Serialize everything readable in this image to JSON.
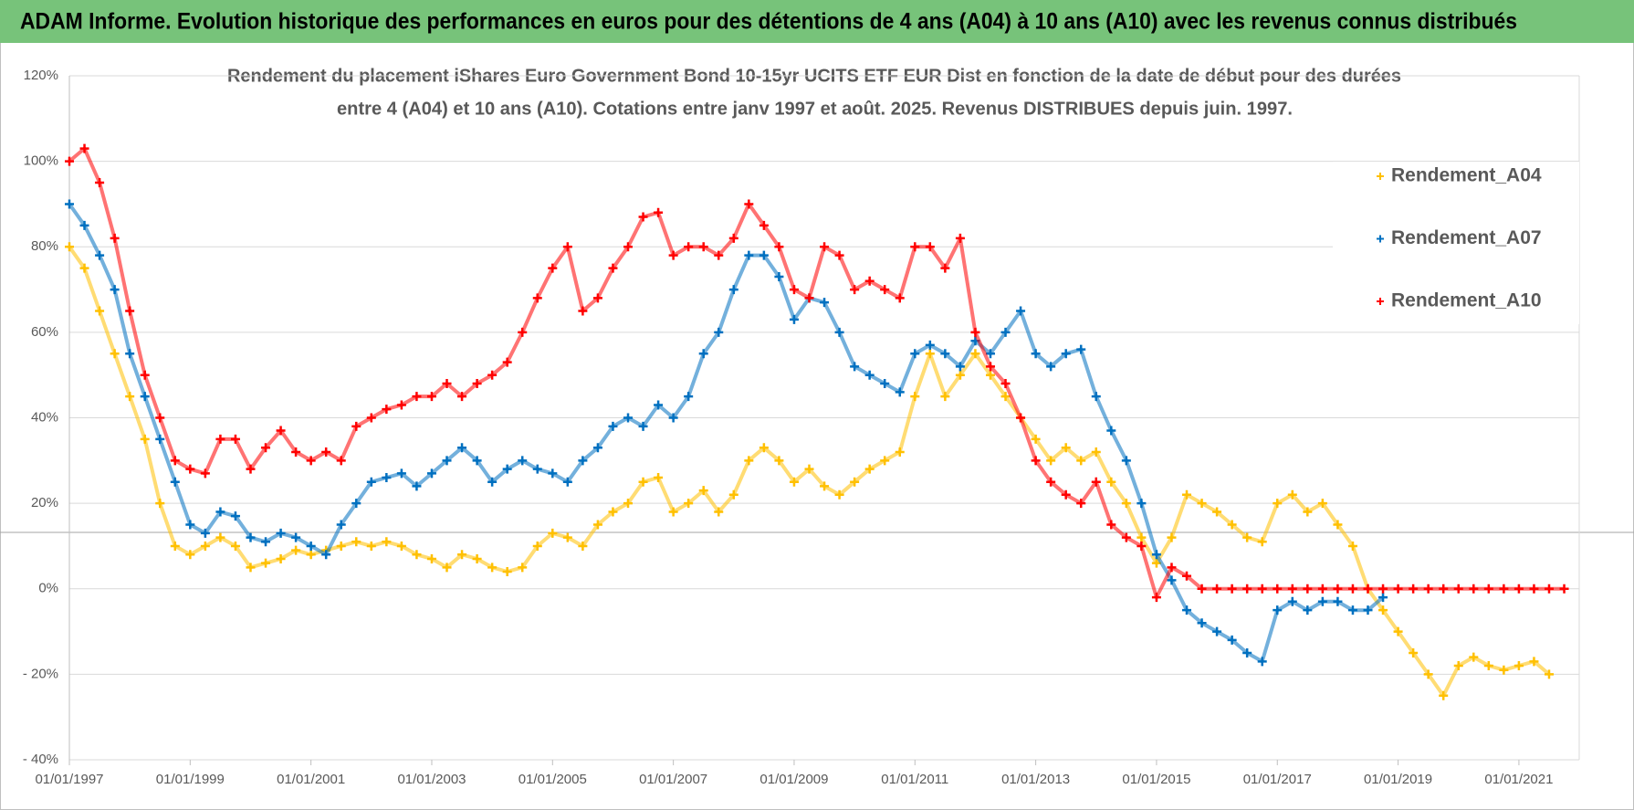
{
  "chart_data": {
    "type": "scatter",
    "title": "ADAM Informe. Evolution historique des performances en euros pour des détentions de 4 ans (A04) à 10 ans (A10) avec les revenus connus distribués",
    "subtitle": [
      "Rendement du placement iShares Euro Government Bond 10-15yr UCITS ETF EUR Dist en fonction de la date de début pour des durées",
      "entre 4 (A04) et 10 ans (A10). Cotations entre janv 1997 et août. 2025. Revenus DISTRIBUES depuis juin. 1997."
    ],
    "x": [
      "1997-01-01",
      "1997-04-01",
      "1997-07-01",
      "1997-10-01",
      "1998-01-01",
      "1998-04-01",
      "1998-07-01",
      "1998-10-01",
      "1999-01-01",
      "1999-04-01",
      "1999-07-01",
      "1999-10-01",
      "2000-01-01",
      "2000-04-01",
      "2000-07-01",
      "2000-10-01",
      "2001-01-01",
      "2001-04-01",
      "2001-07-01",
      "2001-10-01",
      "2002-01-01",
      "2002-04-01",
      "2002-07-01",
      "2002-10-01",
      "2003-01-01",
      "2003-04-01",
      "2003-07-01",
      "2003-10-01",
      "2004-01-01",
      "2004-04-01",
      "2004-07-01",
      "2004-10-01",
      "2005-01-01",
      "2005-04-01",
      "2005-07-01",
      "2005-10-01",
      "2006-01-01",
      "2006-04-01",
      "2006-07-01",
      "2006-10-01",
      "2007-01-01",
      "2007-04-01",
      "2007-07-01",
      "2007-10-01",
      "2008-01-01",
      "2008-04-01",
      "2008-07-01",
      "2008-10-01",
      "2009-01-01",
      "2009-04-01",
      "2009-07-01",
      "2009-10-01",
      "2010-01-01",
      "2010-04-01",
      "2010-07-01",
      "2010-10-01",
      "2011-01-01",
      "2011-04-01",
      "2011-07-01",
      "2011-10-01",
      "2012-01-01",
      "2012-04-01",
      "2012-07-01",
      "2012-10-01",
      "2013-01-01",
      "2013-04-01",
      "2013-07-01",
      "2013-10-01",
      "2014-01-01",
      "2014-04-01",
      "2014-07-01",
      "2014-10-01",
      "2015-01-01",
      "2015-04-01",
      "2015-07-01",
      "2015-10-01",
      "2016-01-01",
      "2016-04-01",
      "2016-07-01",
      "2016-10-01",
      "2017-01-01",
      "2017-04-01",
      "2017-07-01",
      "2017-10-01",
      "2018-01-01",
      "2018-04-01",
      "2018-07-01",
      "2018-10-01",
      "2019-01-01",
      "2019-04-01",
      "2019-07-01",
      "2019-10-01",
      "2020-01-01",
      "2020-04-01",
      "2020-07-01",
      "2020-10-01",
      "2021-01-01",
      "2021-04-01",
      "2021-07-01",
      "2021-10-01"
    ],
    "series": [
      {
        "name": "Rendement_A04",
        "color": "#ffc000",
        "values": [
          80,
          75,
          65,
          55,
          45,
          35,
          20,
          10,
          8,
          10,
          12,
          10,
          5,
          6,
          7,
          9,
          8,
          9,
          10,
          11,
          10,
          11,
          10,
          8,
          7,
          5,
          8,
          7,
          5,
          4,
          5,
          10,
          13,
          12,
          10,
          15,
          18,
          20,
          25,
          26,
          18,
          20,
          23,
          18,
          22,
          30,
          33,
          30,
          25,
          28,
          24,
          22,
          25,
          28,
          30,
          32,
          45,
          55,
          45,
          50,
          55,
          50,
          45,
          40,
          35,
          30,
          33,
          30,
          32,
          25,
          20,
          12,
          6,
          12,
          22,
          20,
          18,
          15,
          12,
          11,
          20,
          22,
          18,
          20,
          15,
          10,
          0,
          -5,
          -10,
          -15,
          -20,
          -25,
          -18,
          -16,
          -18,
          -19,
          -18,
          -17,
          -20,
          null
        ]
      },
      {
        "name": "Rendement_A07",
        "color": "#0070c0",
        "values": [
          90,
          85,
          78,
          70,
          55,
          45,
          35,
          25,
          15,
          13,
          18,
          17,
          12,
          11,
          13,
          12,
          10,
          8,
          15,
          20,
          25,
          26,
          27,
          24,
          27,
          30,
          33,
          30,
          25,
          28,
          30,
          28,
          27,
          25,
          30,
          33,
          38,
          40,
          38,
          43,
          40,
          45,
          55,
          60,
          70,
          78,
          78,
          73,
          63,
          68,
          67,
          60,
          52,
          50,
          48,
          46,
          55,
          57,
          55,
          52,
          58,
          55,
          60,
          65,
          55,
          52,
          55,
          56,
          45,
          37,
          30,
          20,
          8,
          2,
          -5,
          -8,
          -10,
          -12,
          -15,
          -17,
          -5,
          -3,
          -5,
          -3,
          -3,
          -5,
          -5,
          -2,
          null,
          null,
          null,
          null,
          null,
          null,
          null,
          null,
          null,
          null,
          null,
          null
        ]
      },
      {
        "name": "Rendement_A10",
        "color": "#ff0000",
        "values": [
          100,
          103,
          95,
          82,
          65,
          50,
          40,
          30,
          28,
          27,
          35,
          35,
          28,
          33,
          37,
          32,
          30,
          32,
          30,
          38,
          40,
          42,
          43,
          45,
          45,
          48,
          45,
          48,
          50,
          53,
          60,
          68,
          75,
          80,
          65,
          68,
          75,
          80,
          87,
          88,
          78,
          80,
          80,
          78,
          82,
          90,
          85,
          80,
          70,
          68,
          80,
          78,
          70,
          72,
          70,
          68,
          80,
          80,
          75,
          82,
          60,
          52,
          48,
          40,
          30,
          25,
          22,
          20,
          25,
          15,
          12,
          10,
          -2,
          5,
          3,
          0,
          0,
          0,
          0,
          0,
          0,
          0,
          0,
          0,
          0,
          0,
          0,
          0,
          0,
          0,
          0,
          0,
          0,
          0,
          0,
          0,
          0,
          0,
          0,
          0
        ]
      }
    ],
    "xlim": [
      "1997-01-01",
      "2021-12-31"
    ],
    "xticks": [
      {
        "value": "1997-01-01",
        "label": "01/01/1997"
      },
      {
        "value": "1999-01-01",
        "label": "01/01/1999"
      },
      {
        "value": "2001-01-01",
        "label": "01/01/2001"
      },
      {
        "value": "2003-01-01",
        "label": "01/01/2003"
      },
      {
        "value": "2005-01-01",
        "label": "01/01/2005"
      },
      {
        "value": "2007-01-01",
        "label": "01/01/2007"
      },
      {
        "value": "2009-01-01",
        "label": "01/01/2009"
      },
      {
        "value": "2011-01-01",
        "label": "01/01/2011"
      },
      {
        "value": "2013-01-01",
        "label": "01/01/2013"
      },
      {
        "value": "2015-01-01",
        "label": "01/01/2015"
      },
      {
        "value": "2017-01-01",
        "label": "01/01/2017"
      },
      {
        "value": "2019-01-01",
        "label": "01/01/2019"
      },
      {
        "value": "2021-01-01",
        "label": "01/01/2021"
      }
    ],
    "ylim": [
      -40,
      120
    ],
    "yticks": [
      {
        "value": -40,
        "label": "- 40%"
      },
      {
        "value": -20,
        "label": "- 20%"
      },
      {
        "value": 0,
        "label": "0%"
      },
      {
        "value": 20,
        "label": "20%"
      },
      {
        "value": 40,
        "label": "40%"
      },
      {
        "value": 60,
        "label": "60%"
      },
      {
        "value": 80,
        "label": "80%"
      },
      {
        "value": 100,
        "label": "100%"
      },
      {
        "value": 120,
        "label": "120%"
      }
    ],
    "grid": true,
    "legend": "upper right"
  }
}
